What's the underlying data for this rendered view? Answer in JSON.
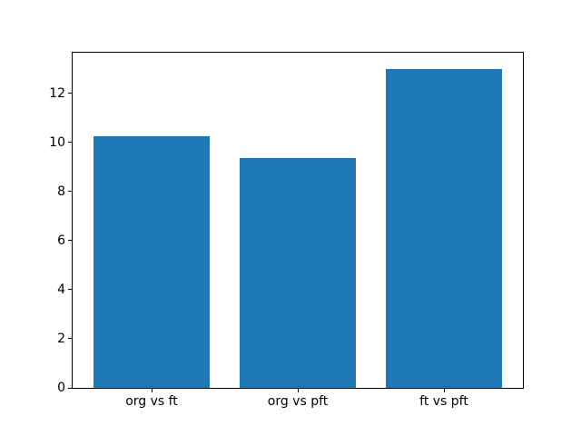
{
  "figure": {
    "title": "",
    "background": "#ffffff"
  },
  "colors": {
    "bar": "#1f77b4",
    "spine": "#000000",
    "text": "#000000",
    "background": "#ffffff"
  },
  "chart_data": {
    "type": "bar",
    "categories": [
      "org vs ft",
      "org vs pft",
      "ft vs pft"
    ],
    "values": [
      10.25,
      9.35,
      13.0
    ],
    "title": "",
    "xlabel": "",
    "ylabel": "",
    "ylim": [
      0,
      13.65
    ],
    "yticks": [
      0,
      2,
      4,
      6,
      8,
      10,
      12
    ],
    "bar_color": "#1f77b4",
    "bar_width_fraction": 0.8,
    "grid": false,
    "legend_position": "none"
  }
}
